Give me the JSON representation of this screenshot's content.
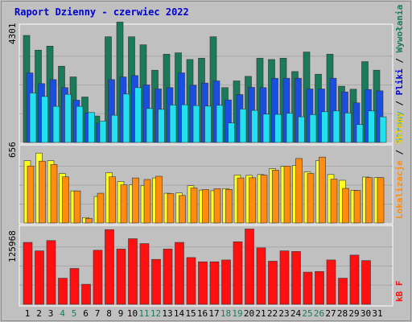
{
  "header": {
    "title": "Raport Dzienny -  czerwiec 2022"
  },
  "axes": {
    "ymax_top": "4301",
    "ymax_mid": "656",
    "ymax_bot": "125968"
  },
  "legend": {
    "top": {
      "parts": [
        "Wywołania",
        "Pliki",
        "Strony"
      ],
      "sep": " / "
    },
    "mid": {
      "parts": [
        "Lokalizacje",
        "Sklepy"
      ],
      "sep": " / "
    },
    "bot": {
      "parts": [
        "kB F"
      ]
    }
  },
  "colors": {
    "bg": "#C0C0C0",
    "frame": "#8c8c8c",
    "title": "#0000cc",
    "hits": "#1a7a5a",
    "files": "#1a4ee0",
    "pages": "#22e0f0",
    "visits": "#ffff22",
    "sites": "#ff8c10",
    "kbf": "#ff1010",
    "day_default": "#000000",
    "day_weekend": "#1a7a5a",
    "legend_hits": "#1a7a5a",
    "legend_files": "#0000cc",
    "legend_pages": "#22aacc",
    "legend_visits": "#ff8c10",
    "legend_sites": "#ffcc00",
    "legend_kbf": "#ff1010"
  },
  "chart_data": {
    "type": "bar",
    "title": "Raport Dzienny -  czerwiec 2022",
    "categories": [
      "1",
      "2",
      "3",
      "4",
      "5",
      "6",
      "7",
      "8",
      "9",
      "10",
      "11",
      "12",
      "13",
      "14",
      "15",
      "16",
      "17",
      "18",
      "19",
      "20",
      "21",
      "22",
      "23",
      "24",
      "25",
      "26",
      "27",
      "28",
      "29",
      "30",
      "31"
    ],
    "weekend_days": [
      "4",
      "5",
      "11",
      "12",
      "18",
      "19",
      "25",
      "26"
    ],
    "panels": [
      {
        "id": "top",
        "ymax": 4301,
        "series": [
          {
            "name": "Wywołania",
            "values": [
              4000,
              3450,
              3600,
              2850,
              2450,
              1700,
              990,
              3950,
              4500,
              3950,
              3650,
              2700,
              3300,
              3350,
              3100,
              3150,
              3950,
              2050,
              2300,
              2470,
              3150,
              3100,
              3150,
              2650,
              3380,
              2550,
              3300,
              2100,
              1990,
              3020,
              2700
            ]
          },
          {
            "name": "Pliki",
            "values": [
              2600,
              2200,
              2350,
              2050,
              1580,
              1100,
              720,
              2350,
              2450,
              2500,
              2150,
              2000,
              2050,
              2600,
              2140,
              2220,
              2300,
              1590,
              1790,
              2060,
              2050,
              2400,
              2400,
              2400,
              2000,
              2000,
              2400,
              1890,
              1480,
              1980,
              1930
            ]
          },
          {
            "name": "Strony",
            "values": [
              1850,
              1720,
              1350,
              1800,
              1350,
              1120,
              800,
              1020,
              1810,
              2050,
              1270,
              1240,
              1400,
              1410,
              1380,
              1360,
              1390,
              730,
              1250,
              1200,
              1060,
              1050,
              1090,
              960,
              1040,
              1150,
              1180,
              1100,
              670,
              1180,
              960
            ]
          }
        ]
      },
      {
        "id": "mid",
        "ymax": 656,
        "series": [
          {
            "name": "Sklepy",
            "values": [
              540,
              606,
              540,
              429,
              278,
              47,
              230,
              436,
              360,
              330,
              325,
              390,
              258,
              260,
              323,
              285,
              280,
              298,
              416,
              413,
              420,
              471,
              491,
              498,
              442,
              541,
              420,
              370,
              284,
              398,
              393
            ]
          },
          {
            "name": "Lokalizacje",
            "values": [
              494,
              536,
              507,
              400,
              278,
              40,
              258,
              400,
              330,
              390,
              377,
              405,
              255,
              238,
              303,
              290,
              297,
              291,
              390,
              392,
              415,
              458,
              493,
              559,
              429,
              571,
              380,
              300,
              282,
              393,
              393
            ]
          }
        ]
      },
      {
        "id": "bot",
        "ymax": 125968,
        "series": [
          {
            "name": "kB F",
            "values": [
              102000,
              88000,
              105000,
              43000,
              59000,
              33000,
              89000,
              123000,
              91000,
              108000,
              100000,
              74000,
              91000,
              102000,
              77000,
              70000,
              70000,
              73000,
              103000,
              124000,
              93000,
              71000,
              88000,
              87000,
              53000,
              54000,
              73000,
              43000,
              81000,
              72000,
              0
            ]
          }
        ]
      }
    ]
  }
}
